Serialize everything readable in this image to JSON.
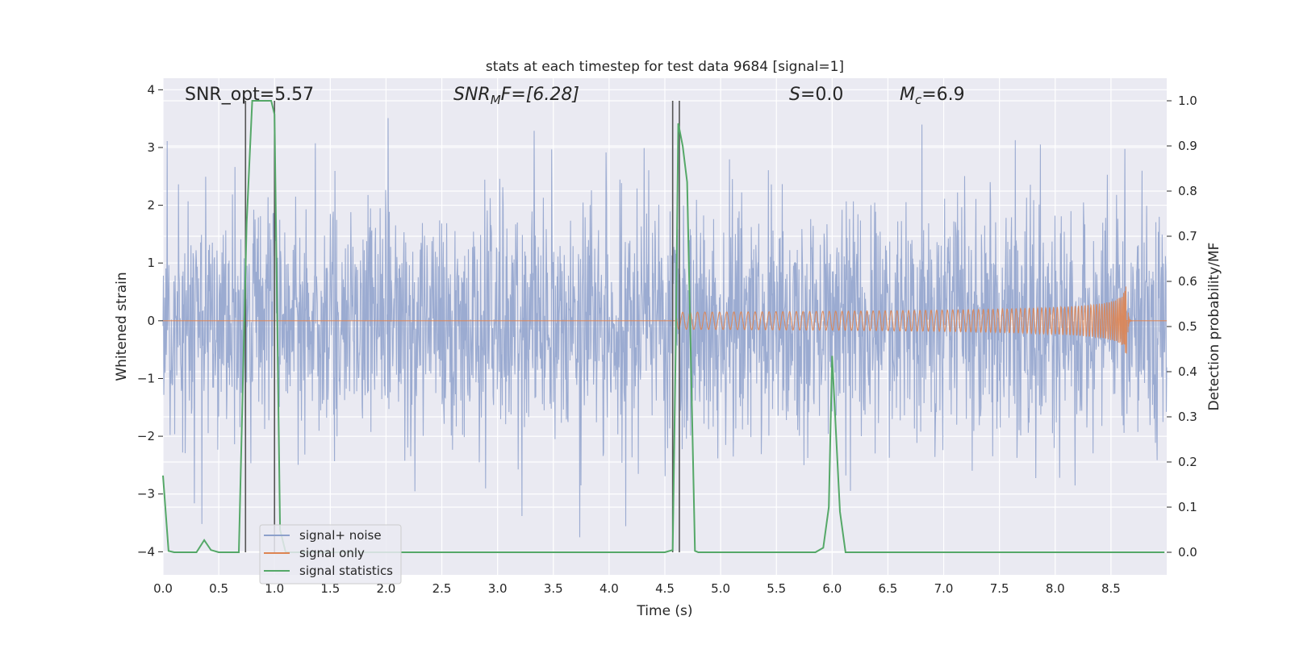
{
  "chart_data": {
    "type": "line",
    "title": "stats at each timestep for test data 9684 [signal=1]",
    "xlabel": "Time (s)",
    "ylabel_left": "Whitened strain",
    "ylabel_right": "Detection probability/MF",
    "xlim": [
      0.0,
      9.0
    ],
    "ylim_left": [
      -4.4,
      4.2
    ],
    "ylim_right": [
      -0.05,
      1.05
    ],
    "x_ticks": [
      "0.0",
      "0.5",
      "1.0",
      "1.5",
      "2.0",
      "2.5",
      "3.0",
      "3.5",
      "4.0",
      "4.5",
      "5.0",
      "5.5",
      "6.0",
      "6.5",
      "7.0",
      "7.5",
      "8.0",
      "8.5"
    ],
    "y_ticks_left": [
      "−4",
      "−3",
      "−2",
      "−1",
      "0",
      "1",
      "2",
      "3",
      "4"
    ],
    "y_ticks_right": [
      "0.0",
      "0.1",
      "0.2",
      "0.3",
      "0.4",
      "0.5",
      "0.6",
      "0.7",
      "0.8",
      "0.9",
      "1.0"
    ],
    "grid": true,
    "legend_placement": "lower-left",
    "annotations": {
      "snr_opt": "SNR_opt=5.57",
      "snr_mf_label": "SNR",
      "snr_mf_sub": "M",
      "snr_mf_value": "F=[6.28]",
      "s_label": "S",
      "s_value": "=0.0",
      "mc_label": "M",
      "mc_sub": "c",
      "mc_value": "=6.9"
    },
    "series": [
      {
        "name": "signal+ noise",
        "color": "#8da0cb",
        "axis": "left",
        "description_only": "dense noisy strain, approx. range -3.7 to 3.8",
        "noise_std": 1.0
      },
      {
        "name": "signal only",
        "color": "#dd8452",
        "axis": "left",
        "chirp_start": 4.6,
        "chirp_merger": 8.65,
        "peak_amplitude": 0.7
      },
      {
        "name": "signal statistics",
        "color": "#55a868",
        "axis": "right",
        "x": [
          0.0,
          0.05,
          0.1,
          0.3,
          0.37,
          0.43,
          0.5,
          0.68,
          0.75,
          0.8,
          0.9,
          0.97,
          1.0,
          1.05,
          1.1,
          1.5,
          2.0,
          2.5,
          3.0,
          3.5,
          4.0,
          4.5,
          4.57,
          4.6,
          4.62,
          4.66,
          4.7,
          4.77,
          4.8,
          5.0,
          5.5,
          5.85,
          5.92,
          5.97,
          6.0,
          6.07,
          6.12,
          6.2,
          6.5,
          7.0,
          7.5,
          8.0,
          8.5,
          8.98
        ],
        "y": [
          0.17,
          0.003,
          0.0,
          0.0,
          0.027,
          0.005,
          0.0,
          0.0,
          0.73,
          1.0,
          1.0,
          1.0,
          0.97,
          0.05,
          0.0,
          0.0,
          0.0,
          0.0,
          0.0,
          0.0,
          0.0,
          0.0,
          0.005,
          0.5,
          0.95,
          0.9,
          0.82,
          0.003,
          0.0,
          0.0,
          0.0,
          0.0,
          0.01,
          0.1,
          0.435,
          0.09,
          0.0,
          0.0,
          0.0,
          0.0,
          0.0,
          0.0,
          0.0,
          0.0
        ]
      }
    ],
    "vertical_markers": [
      0.74,
      1.0,
      4.57,
      4.63
    ]
  }
}
